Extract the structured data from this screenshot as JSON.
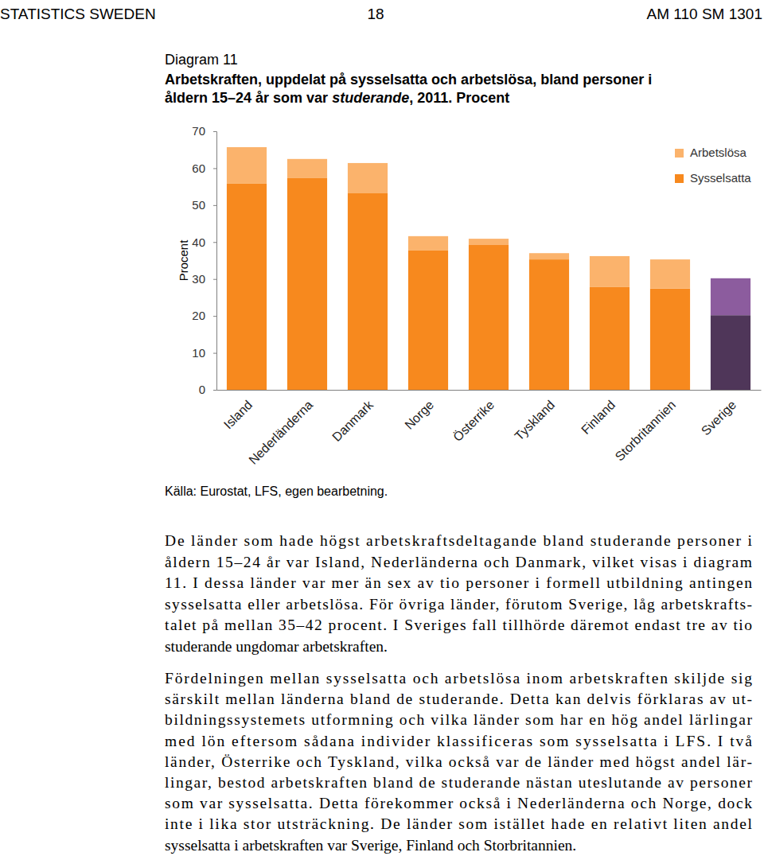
{
  "header": {
    "left": "STATISTICS SWEDEN",
    "page": 18,
    "right": "AM 110 SM 1301"
  },
  "figure": {
    "label": "Diagram 11",
    "title_lines": [
      [
        {
          "text": "Arbetskraften, uppdelat på sysselsatta och arbetslösa, bland personer i",
          "italic": false
        }
      ],
      [
        {
          "text": "åldern 15–24 år som var ",
          "italic": false
        },
        {
          "text": "studerande",
          "italic": true
        },
        {
          "text": ", 2011. Procent",
          "italic": false
        }
      ]
    ],
    "source": "Källa: Eurostat, LFS, egen bearbetning."
  },
  "chart_data": {
    "type": "bar",
    "stacked": true,
    "legend": "upper right",
    "ylabel": "Procent",
    "categories": [
      "Island",
      "Nederländerna",
      "Danmark",
      "Norge",
      "Österrike",
      "Tyskland",
      "Finland",
      "Storbritannien",
      "Sverige"
    ],
    "series": [
      {
        "name": "Sysselsatta",
        "colors": [
          "#f7891e",
          "#f7891e",
          "#f7891e",
          "#f7891e",
          "#f7891e",
          "#f7891e",
          "#f7891e",
          "#f7891e",
          "#4f3659"
        ],
        "values": [
          55.8,
          57.3,
          53.2,
          37.7,
          39.2,
          35.3,
          27.8,
          27.4,
          20.2
        ]
      },
      {
        "name": "Arbetslösa",
        "colors": [
          "#fbb36c",
          "#fbb36c",
          "#fbb36c",
          "#fbb36c",
          "#fbb36c",
          "#fbb36c",
          "#fbb36c",
          "#fbb36c",
          "#8c5c9e"
        ],
        "values": [
          9.9,
          5.2,
          8.2,
          3.9,
          1.7,
          1.7,
          8.4,
          7.9,
          10.0
        ]
      }
    ],
    "ylim": [
      0,
      70
    ],
    "yticks": [
      0,
      10,
      20,
      30,
      40,
      50,
      60,
      70
    ],
    "grid": false
  },
  "paragraphs": [
    [
      "De länder som hade högst arbetskraftsdeltagande bland studerande personer i",
      "åldern 15–24 år var Island, Nederländerna och Danmark, vilket visas i diagram",
      "11. I dessa länder var mer än sex av tio personer i formell utbildning antingen",
      "sysselsatta eller arbetslösa. För övriga länder, förutom Sverige, låg arbetskrafts-",
      "talet på mellan 35–42 procent. I Sveriges fall tillhörde däremot endast tre av tio",
      "studerande ungdomar arbetskraften."
    ],
    [
      "Fördelningen mellan sysselsatta och arbetslösa inom arbetskraften skiljde sig",
      "särskilt mellan länderna bland de studerande. Detta kan delvis förklaras av ut-",
      "bildningssystemets utformning och vilka länder som har en hög andel lärlingar",
      "med lön eftersom sådana individer klassificeras som sysselsatta i LFS. I två",
      "länder, Österrike och Tyskland, vilka också var de länder med högst andel lär-",
      "lingar, bestod arbetskraften bland de studerande nästan uteslutande av personer",
      "som var sysselsatta. Detta förekommer också i Nederländerna och Norge, dock",
      "inte i lika stor utsträckning. De länder som istället hade en relativt liten andel",
      "sysselsatta i arbetskraften var Sverige, Finland och Storbritannien."
    ]
  ]
}
